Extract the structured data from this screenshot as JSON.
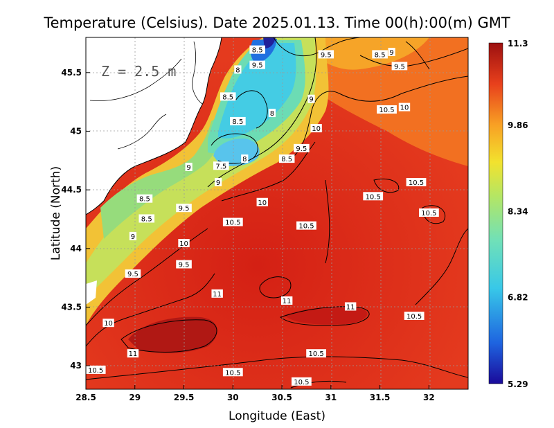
{
  "chart_data": {
    "type": "heatmap",
    "title": "Temperature (Celsius). Date 2025.01.13. Time 00(h):00(m) GMT",
    "xlabel": "Longitude (East)",
    "ylabel": "Latitude (North)",
    "depth_label": "Z = 2.5 m",
    "xlim": [
      28.5,
      32.4
    ],
    "ylim": [
      42.8,
      45.8
    ],
    "x_ticks": [
      "28.5",
      "29",
      "29.5",
      "30",
      "30.5",
      "31",
      "31.5",
      "32"
    ],
    "y_ticks": [
      "43",
      "43.5",
      "44",
      "44.5",
      "45",
      "45.5"
    ],
    "grid": true,
    "colorbar": {
      "ticks": [
        "11.3",
        "9.86",
        "8.34",
        "6.82",
        "5.29"
      ],
      "min": 5.29,
      "max": 11.3
    },
    "contour_labels": [
      {
        "text": "9.5",
        "lon": 30.95,
        "lat": 45.65
      },
      {
        "text": "8.5",
        "lon": 30.25,
        "lat": 45.69
      },
      {
        "text": "9.5",
        "lon": 30.25,
        "lat": 45.56
      },
      {
        "text": "8",
        "lon": 30.05,
        "lat": 45.52
      },
      {
        "text": "8.5",
        "lon": 31.5,
        "lat": 45.65
      },
      {
        "text": "9",
        "lon": 31.62,
        "lat": 45.67
      },
      {
        "text": "9.5",
        "lon": 31.7,
        "lat": 45.55
      },
      {
        "text": "8.5",
        "lon": 29.95,
        "lat": 45.29
      },
      {
        "text": "8",
        "lon": 30.4,
        "lat": 45.15
      },
      {
        "text": "9",
        "lon": 30.8,
        "lat": 45.27
      },
      {
        "text": "10",
        "lon": 31.75,
        "lat": 45.2
      },
      {
        "text": "10.5",
        "lon": 31.57,
        "lat": 45.18
      },
      {
        "text": "8.5",
        "lon": 30.05,
        "lat": 45.08
      },
      {
        "text": "10",
        "lon": 30.85,
        "lat": 45.02
      },
      {
        "text": "9.5",
        "lon": 30.7,
        "lat": 44.85
      },
      {
        "text": "8",
        "lon": 30.12,
        "lat": 44.76
      },
      {
        "text": "8.5",
        "lon": 30.55,
        "lat": 44.76
      },
      {
        "text": "7.5",
        "lon": 29.88,
        "lat": 44.7
      },
      {
        "text": "9",
        "lon": 29.55,
        "lat": 44.69
      },
      {
        "text": "9",
        "lon": 29.85,
        "lat": 44.56
      },
      {
        "text": "10.5",
        "lon": 31.87,
        "lat": 44.56
      },
      {
        "text": "10.5",
        "lon": 31.43,
        "lat": 44.44
      },
      {
        "text": "10",
        "lon": 30.3,
        "lat": 44.39
      },
      {
        "text": "8.5",
        "lon": 29.1,
        "lat": 44.42
      },
      {
        "text": "9.5",
        "lon": 29.5,
        "lat": 44.34
      },
      {
        "text": "10.5",
        "lon": 32.0,
        "lat": 44.3
      },
      {
        "text": "8.5",
        "lon": 29.12,
        "lat": 44.25
      },
      {
        "text": "10.5",
        "lon": 30.0,
        "lat": 44.22
      },
      {
        "text": "10.5",
        "lon": 30.75,
        "lat": 44.19
      },
      {
        "text": "9",
        "lon": 28.98,
        "lat": 44.1
      },
      {
        "text": "10",
        "lon": 29.5,
        "lat": 44.04
      },
      {
        "text": "9.5",
        "lon": 29.5,
        "lat": 43.86
      },
      {
        "text": "9.5",
        "lon": 28.98,
        "lat": 43.78
      },
      {
        "text": "11",
        "lon": 29.84,
        "lat": 43.61
      },
      {
        "text": "11",
        "lon": 30.55,
        "lat": 43.55
      },
      {
        "text": "11",
        "lon": 31.2,
        "lat": 43.5
      },
      {
        "text": "10.5",
        "lon": 31.85,
        "lat": 43.42
      },
      {
        "text": "10",
        "lon": 28.73,
        "lat": 43.36
      },
      {
        "text": "11",
        "lon": 28.98,
        "lat": 43.1
      },
      {
        "text": "10.5",
        "lon": 30.85,
        "lat": 43.1
      },
      {
        "text": "10.5",
        "lon": 28.6,
        "lat": 42.96
      },
      {
        "text": "10.5",
        "lon": 30.0,
        "lat": 42.94
      },
      {
        "text": "10.5",
        "lon": 30.7,
        "lat": 42.86
      }
    ]
  }
}
